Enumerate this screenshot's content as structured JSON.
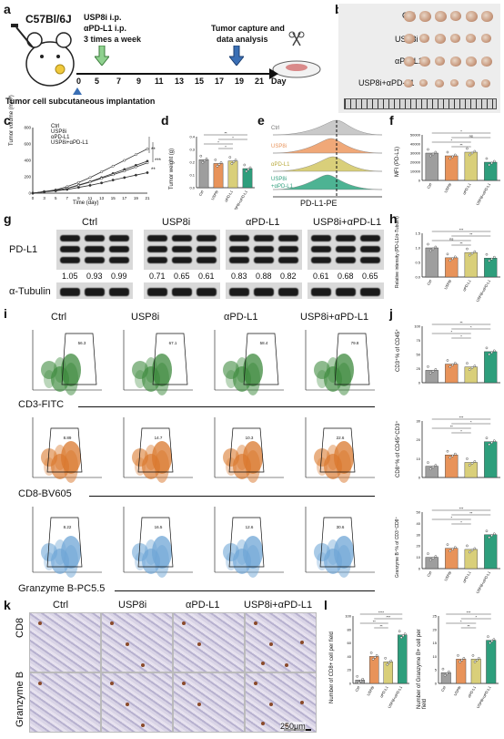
{
  "panels": {
    "a": "a",
    "b": "b",
    "c": "c",
    "d": "d",
    "e": "e",
    "f": "f",
    "g": "g",
    "h": "h",
    "i": "i",
    "j": "j",
    "k": "k",
    "l": "l"
  },
  "schematic": {
    "mouse_strain": "C57Bl/6J",
    "treatment_line1": "USP8i  i.p.",
    "treatment_line2": "αPD-L1 i.p.",
    "treatment_line3": "3 times a week",
    "capture_line1": "Tumor capture and",
    "capture_line2": "data analysis",
    "timeline_ticks": [
      "0",
      "5",
      "7",
      "9",
      "11",
      "13",
      "15",
      "17",
      "19",
      "21"
    ],
    "timeline_unit": "Day",
    "implant_label": "Tumor cell  subcutaneous implantation"
  },
  "groups": [
    "Ctrl",
    "USP8i",
    "αPD-L1",
    "USP8i+αPD-L1"
  ],
  "groups_short": [
    "Ctrl",
    "USP8i",
    "αPD-L1",
    "USP8i+αPD-L1"
  ],
  "tumor_curve": {
    "ylabel": "Tumor volume (mm³)",
    "xlabel": "Time (day)",
    "xticks": [
      "0",
      "3",
      "5",
      "7",
      "9",
      "11",
      "13",
      "15",
      "17",
      "19",
      "21"
    ],
    "yticks": [
      "0",
      "200",
      "400",
      "600",
      "800"
    ],
    "legend": [
      "Ctrl",
      "USP8i",
      "αPD-L1",
      "USP8i+αPD-L1"
    ],
    "sig": [
      "**",
      "***",
      "**"
    ]
  },
  "tumor_weight": {
    "ylabel": "Tumor weight (g)",
    "yticks": [
      "0.0",
      "0.1",
      "0.2",
      "0.3",
      "0.4"
    ],
    "sig": [
      "**",
      "*",
      "*",
      "*"
    ]
  },
  "flow_hist": {
    "xlabel": "PD-L1-PE",
    "labels": [
      "Ctrl",
      "USP8i",
      "αPD-L1",
      "USP8i",
      "+αPD-L1"
    ]
  },
  "mfi": {
    "ylabel": "MFI (PD-L1)",
    "yticks": [
      "0",
      "10000",
      "20000",
      "30000",
      "40000",
      "50000"
    ],
    "sig": [
      "*",
      "ns",
      "*",
      "**"
    ]
  },
  "western": {
    "protein1": "PD-L1",
    "protein2": "α-Tubulin",
    "values": [
      "1.05",
      "0.93",
      "0.99",
      "0.71",
      "0.65",
      "0.61",
      "0.83",
      "0.88",
      "0.82",
      "0.61",
      "0.68",
      "0.65"
    ]
  },
  "rel_intensity": {
    "ylabel": "Relative intensity (PD-L1/α-Tubulin)",
    "yticks": [
      "0.0",
      "0.5",
      "1.0",
      "1.5"
    ],
    "sig": [
      "***",
      "**",
      "ns",
      "**"
    ]
  },
  "flow_panels": {
    "cd3_axis": "CD3-FITC",
    "cd8_axis": "CD8-BV605",
    "gzmb_axis": "Granzyme B-PC5.5",
    "cd3_pct": [
      "56.3",
      "67.1",
      "58.4",
      "79.8"
    ],
    "cd8_pct": [
      "8.89",
      "14.7",
      "10.3",
      "22.6"
    ],
    "gzmb_pct": [
      "8.22",
      "16.5",
      "12.6",
      "30.6"
    ]
  },
  "quant_j": {
    "cd3_ylabel": "CD3⁺% of CD45⁺",
    "cd8_ylabel": "CD8⁺% of CD45⁺CD3⁺",
    "gzmb_ylabel": "Granzyme B⁺% of CD3⁺CD8⁺",
    "sig_cd3": [
      "**",
      "*",
      "*",
      "*"
    ],
    "sig_cd8": [
      "***",
      "*",
      "**",
      "*"
    ],
    "sig_gzmb": [
      "***",
      "**",
      "*",
      "*"
    ]
  },
  "ihc": {
    "row1": "CD8",
    "row2": "Granzyme B",
    "scale": "250μm"
  },
  "quant_l": {
    "cd8_ylabel": "Number of CD8+ cell per field",
    "gzmb_ylabel": "Number of Granzyme B+ cell per field",
    "sig_cd8": [
      "****",
      "***",
      "**",
      "**"
    ],
    "sig_gzmb": [
      "***",
      "*",
      "*",
      "**"
    ]
  },
  "colors": {
    "ctrl": "#9e9e9e",
    "usp8i": "#e8935a",
    "apdl1": "#d9cf7a",
    "combo": "#2e9e7c",
    "green_flow": "#3d8a3d",
    "orange_flow": "#d9782d",
    "blue_flow": "#6fa6d6"
  }
}
